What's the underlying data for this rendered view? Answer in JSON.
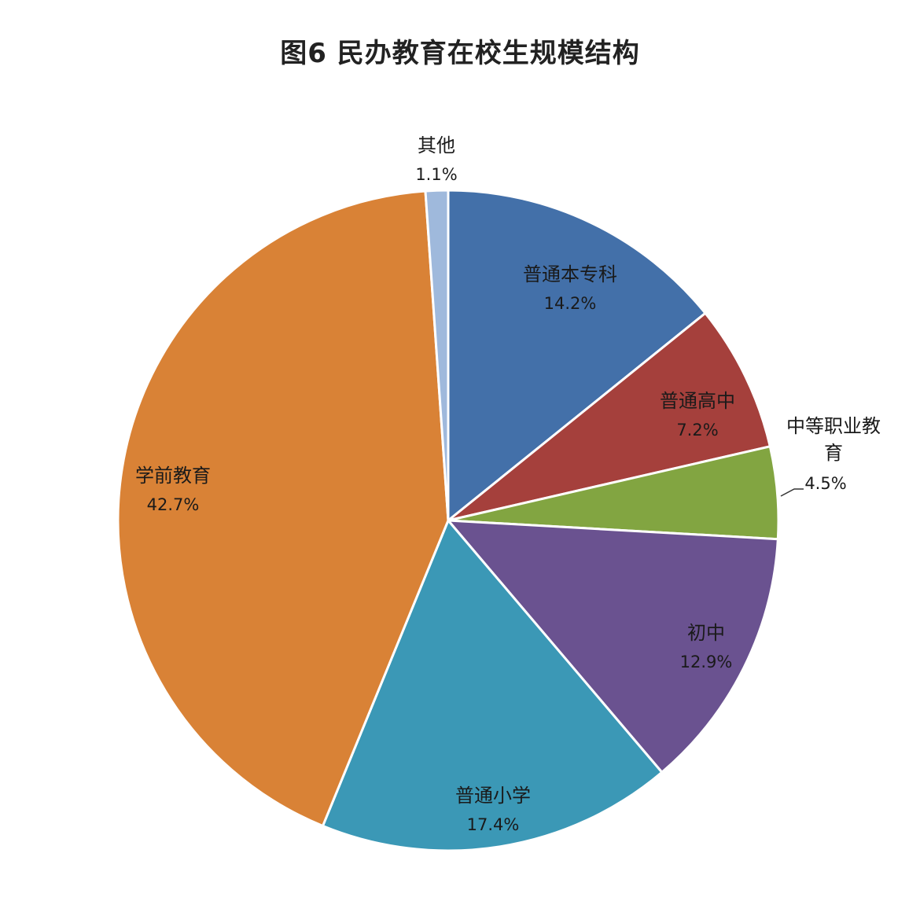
{
  "chart_data": {
    "type": "pie",
    "title": "图6  民办教育在校生规模结构",
    "slices": [
      {
        "label": "普通本专科",
        "value": 14.2,
        "value_label": "14.2%",
        "color": "#4370a9"
      },
      {
        "label": "普通高中",
        "value": 7.2,
        "value_label": "7.2%",
        "color": "#a5403c"
      },
      {
        "label": "中等职业教育",
        "value": 4.5,
        "value_label": "4.5%",
        "color": "#82a541"
      },
      {
        "label": "初中",
        "value": 12.9,
        "value_label": "12.9%",
        "color": "#6a5290"
      },
      {
        "label": "普通小学",
        "value": 17.4,
        "value_label": "17.4%",
        "color": "#3b98b6"
      },
      {
        "label": "学前教育",
        "value": 42.7,
        "value_label": "42.7%",
        "color": "#d98236"
      },
      {
        "label": "其他",
        "value": 1.1,
        "value_label": "1.1%",
        "color": "#9fb9dc"
      }
    ]
  }
}
